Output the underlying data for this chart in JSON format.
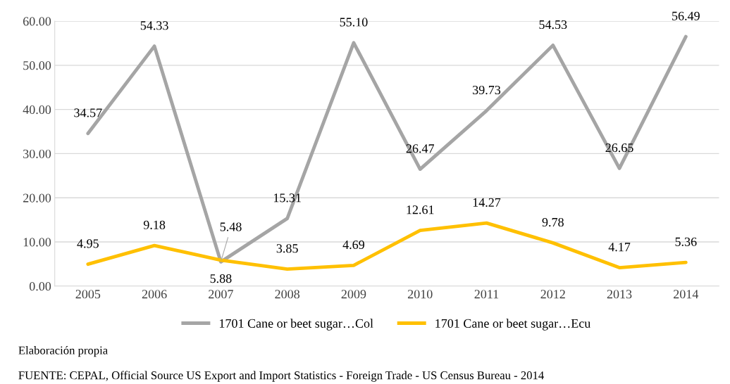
{
  "chart_data": {
    "type": "line",
    "categories": [
      "2005",
      "2006",
      "2007",
      "2008",
      "2009",
      "2010",
      "2011",
      "2012",
      "2013",
      "2014"
    ],
    "series": [
      {
        "name": "1701 Cane or beet sugar…Col",
        "color": "#a5a5a5",
        "values": [
          34.57,
          54.33,
          5.48,
          15.31,
          55.1,
          26.47,
          39.73,
          54.53,
          26.65,
          56.49
        ],
        "value_labels": [
          "34.57",
          "54.33",
          "5.48",
          "15.31",
          "55.10",
          "26.47",
          "39.73",
          "54.53",
          "26.65",
          "56.49"
        ]
      },
      {
        "name": "1701 Cane or beet sugar…Ecu",
        "color": "#ffc000",
        "values": [
          4.95,
          9.18,
          5.88,
          3.85,
          4.69,
          12.61,
          14.27,
          9.78,
          4.17,
          5.36
        ],
        "value_labels": [
          "4.95",
          "9.18",
          "5.88",
          "3.85",
          "4.69",
          "12.61",
          "14.27",
          "9.78",
          "4.17",
          "5.36"
        ]
      }
    ],
    "ylim": [
      0,
      60
    ],
    "yticks": [
      {
        "value": 0,
        "label": "0.00"
      },
      {
        "value": 10,
        "label": "10.00"
      },
      {
        "value": 20,
        "label": "20.00"
      },
      {
        "value": 30,
        "label": "30.00"
      },
      {
        "value": 40,
        "label": "40.00"
      },
      {
        "value": 50,
        "label": "50.00"
      },
      {
        "value": 60,
        "label": "60.00"
      }
    ],
    "grid": "y",
    "legend": "bottom",
    "marker": "none",
    "line_style": "solid",
    "annotations": [
      "Elaboración propia",
      "FUENTE: CEPAL, Official Source US Export and Import Statistics - Foreign Trade - US Census Bureau - 2014"
    ]
  }
}
